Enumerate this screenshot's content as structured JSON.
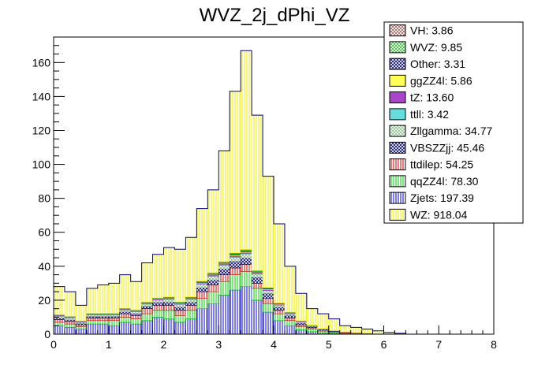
{
  "chart_data": {
    "type": "bar",
    "title": "WVZ_2j_dPhi_VZ",
    "xlabel": "",
    "ylabel": "",
    "xlim": [
      0,
      8
    ],
    "ylim": [
      0,
      175
    ],
    "bin_width": 0.2,
    "x_ticks": [
      "0",
      "1",
      "2",
      "3",
      "4",
      "5",
      "6",
      "7",
      "8"
    ],
    "y_ticks": [
      "0",
      "20",
      "40",
      "60",
      "80",
      "100",
      "120",
      "140",
      "160"
    ],
    "y_tick_values": [
      0,
      20,
      40,
      60,
      80,
      100,
      120,
      140,
      160
    ],
    "stack_order": [
      "Zjets",
      "qqZZ4l",
      "ttdilep",
      "VBSZZjj",
      "Zllgamma",
      "ttll",
      "tZ",
      "ggZZ4l",
      "Other",
      "WVZ",
      "VH",
      "WZ"
    ],
    "totals": [
      28,
      25,
      17,
      27,
      29,
      30,
      35,
      31,
      42,
      47,
      51,
      50,
      57,
      74,
      85,
      108,
      143,
      167,
      129,
      93,
      65,
      40,
      24,
      15,
      12,
      9,
      5,
      4,
      3,
      2,
      1,
      0.5
    ],
    "series": [
      {
        "name": "Zjets",
        "color": "#0000cc",
        "hatch": "vertical",
        "values": [
          5,
          4,
          3,
          6,
          6,
          5,
          7,
          6,
          8,
          10,
          9,
          7,
          9,
          15,
          18,
          23,
          26,
          28,
          20,
          13,
          8,
          5,
          2.5,
          1.5,
          0.8,
          0.5,
          0.3,
          0.2,
          0.1,
          0.1,
          0,
          0
        ]
      },
      {
        "name": "qqZZ4l",
        "color": "#00cc00",
        "hatch": "vertical",
        "values": [
          2,
          2,
          1.5,
          2,
          2,
          3,
          3,
          3,
          4,
          4,
          5,
          4,
          5,
          6,
          7,
          8,
          9,
          9,
          7,
          5,
          4,
          3,
          2,
          1.5,
          1,
          0.7,
          0.4,
          0.3,
          0.2,
          0.1,
          0.1,
          0
        ]
      },
      {
        "name": "ttdilep",
        "color": "#cc0000",
        "hatch": "vertical",
        "values": [
          1.5,
          1.5,
          1,
          1.5,
          1.5,
          1.5,
          2,
          2,
          3,
          3,
          3,
          3,
          3,
          4,
          4,
          4,
          4,
          4,
          3,
          3,
          2,
          1.5,
          1,
          0.8,
          0.6,
          0.4,
          0.3,
          0.2,
          0.1,
          0.1,
          0,
          0
        ]
      },
      {
        "name": "VBSZZjj",
        "color": "#000066",
        "hatch": "cross",
        "values": [
          1,
          1,
          0.8,
          1,
          1,
          1,
          1.2,
          1.2,
          1.5,
          1.8,
          2,
          2,
          2,
          2.5,
          3,
          3.5,
          4,
          4,
          3.5,
          3,
          2,
          1.5,
          1,
          0.8,
          0.5,
          0.3,
          0.2,
          0.1,
          0.1,
          0,
          0,
          0
        ]
      },
      {
        "name": "Zllgamma",
        "color": "#99cc99",
        "hatch": "cross",
        "values": [
          1,
          1,
          0.6,
          0.8,
          0.8,
          0.8,
          1,
          1,
          1.2,
          1.2,
          1.5,
          1.5,
          1.5,
          1.8,
          2,
          2,
          2.2,
          2.2,
          1.8,
          1.5,
          1,
          0.8,
          0.5,
          0.3,
          0.2,
          0.1,
          0.1,
          0,
          0,
          0,
          0,
          0
        ]
      },
      {
        "name": "ttll",
        "color": "#66dddd",
        "hatch": "solid",
        "values": [
          0.1,
          0.1,
          0.1,
          0.1,
          0.1,
          0.1,
          0.1,
          0.1,
          0.1,
          0.1,
          0.1,
          0.1,
          0.1,
          0.2,
          0.2,
          0.2,
          0.2,
          0.2,
          0.2,
          0.2,
          0.1,
          0.1,
          0.1,
          0.1,
          0,
          0,
          0,
          0,
          0,
          0,
          0,
          0
        ]
      },
      {
        "name": "tZ",
        "color": "#aa44cc",
        "hatch": "solid",
        "values": [
          0.4,
          0.4,
          0.3,
          0.4,
          0.4,
          0.4,
          0.4,
          0.4,
          0.5,
          0.5,
          0.5,
          0.5,
          0.5,
          0.6,
          0.7,
          0.7,
          0.8,
          0.8,
          0.7,
          0.6,
          0.5,
          0.4,
          0.3,
          0.2,
          0.1,
          0.1,
          0,
          0,
          0,
          0,
          0,
          0
        ]
      },
      {
        "name": "ggZZ4l",
        "color": "#ffff55",
        "hatch": "solid",
        "values": [
          0.1,
          0.1,
          0.1,
          0.1,
          0.1,
          0.1,
          0.1,
          0.1,
          0.2,
          0.2,
          0.2,
          0.2,
          0.2,
          0.3,
          0.3,
          0.3,
          0.4,
          0.4,
          0.3,
          0.3,
          0.2,
          0.2,
          0.1,
          0.1,
          0.1,
          0,
          0,
          0,
          0,
          0,
          0,
          0
        ]
      },
      {
        "name": "Other",
        "color": "#000066",
        "hatch": "cross",
        "values": [
          0.1,
          0.1,
          0.1,
          0.1,
          0.1,
          0.1,
          0.1,
          0.1,
          0.1,
          0.1,
          0.1,
          0.1,
          0.1,
          0.2,
          0.2,
          0.2,
          0.3,
          0.3,
          0.2,
          0.2,
          0.1,
          0.1,
          0.1,
          0,
          0,
          0,
          0,
          0,
          0,
          0,
          0,
          0
        ]
      },
      {
        "name": "WVZ",
        "color": "#33bb33",
        "hatch": "solid",
        "values": [
          0.2,
          0.2,
          0.2,
          0.2,
          0.2,
          0.2,
          0.3,
          0.3,
          0.3,
          0.4,
          0.4,
          0.4,
          0.4,
          0.5,
          0.6,
          0.6,
          0.7,
          0.7,
          0.6,
          0.5,
          0.4,
          0.3,
          0.2,
          0.1,
          0.1,
          0,
          0,
          0,
          0,
          0,
          0,
          0
        ]
      },
      {
        "name": "VH",
        "color": "#996666",
        "hatch": "solid",
        "values": [
          0.1,
          0.1,
          0.1,
          0.1,
          0.1,
          0.1,
          0.1,
          0.1,
          0.1,
          0.1,
          0.2,
          0.2,
          0.2,
          0.2,
          0.2,
          0.2,
          0.3,
          0.3,
          0.2,
          0.2,
          0.1,
          0.1,
          0.1,
          0,
          0,
          0,
          0,
          0,
          0,
          0,
          0,
          0
        ]
      },
      {
        "name": "WZ",
        "color": "#ffff00",
        "hatch": "vertical",
        "values": "remainder-to-totals"
      }
    ],
    "legend": [
      {
        "label": "VH: 3.86",
        "color": "#996666",
        "hatch": "cross"
      },
      {
        "label": "WVZ: 9.85",
        "color": "#33bb33",
        "hatch": "cross"
      },
      {
        "label": "Other: 3.31",
        "color": "#000066",
        "hatch": "cross"
      },
      {
        "label": "ggZZ4l: 5.86",
        "color": "#ffff55",
        "hatch": "solid"
      },
      {
        "label": "tZ: 13.60",
        "color": "#aa44cc",
        "hatch": "solid"
      },
      {
        "label": "ttll: 3.42",
        "color": "#66dddd",
        "hatch": "solid"
      },
      {
        "label": "Zllgamma: 34.77",
        "color": "#99cc99",
        "hatch": "cross"
      },
      {
        "label": "VBSZZjj: 45.46",
        "color": "#000066",
        "hatch": "cross"
      },
      {
        "label": "ttdilep: 54.25",
        "color": "#cc0000",
        "hatch": "vertical"
      },
      {
        "label": "qqZZ4l: 78.30",
        "color": "#00cc00",
        "hatch": "vertical"
      },
      {
        "label": "Zjets: 197.39",
        "color": "#0000cc",
        "hatch": "vertical"
      },
      {
        "label": "WZ: 918.04",
        "color": "#ffff00",
        "hatch": "vertical"
      }
    ],
    "legend_position": "top-right"
  }
}
